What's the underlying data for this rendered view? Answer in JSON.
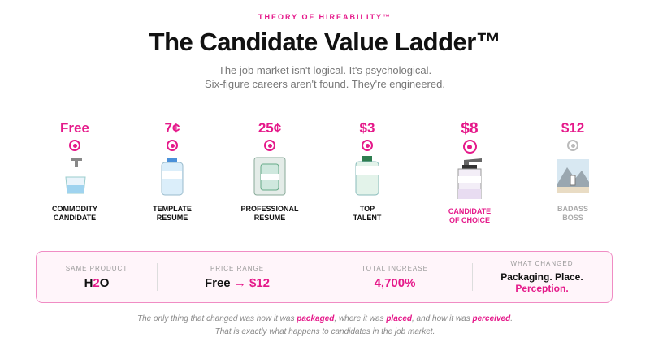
{
  "header": {
    "eyebrow": "THEORY OF HIREABILITY™",
    "title": "The Candidate Value Ladder™",
    "subtitle": [
      "The job market isn't logical. It's psychological.",
      "Six-figure careers aren't found. They're engineered."
    ]
  },
  "steps": [
    {
      "price": "Free",
      "label": [
        "COMMODITY",
        "CANDIDATE"
      ]
    },
    {
      "price": "7¢",
      "label": [
        "TEMPLATE",
        "RESUME"
      ]
    },
    {
      "price": "25¢",
      "label": [
        "PROFESSIONAL",
        "RESUME"
      ]
    },
    {
      "price": "$3",
      "label": [
        "TOP",
        "TALENT"
      ]
    },
    {
      "price": "$8",
      "label": [
        "CANDIDATE",
        "OF CHOICE"
      ]
    },
    {
      "price": "$12",
      "label": [
        "BADASS",
        "BOSS"
      ]
    }
  ],
  "summary": [
    {
      "label": "SAME PRODUCT",
      "value": [
        "H",
        "2",
        "O"
      ]
    },
    {
      "label": "PRICE RANGE",
      "value": [
        "Free",
        "→",
        "$12"
      ]
    },
    {
      "label": "TOTAL INCREASE",
      "value": [
        "4,700%"
      ]
    },
    {
      "label": "WHAT CHANGED",
      "value": [
        "Packaging. Place.",
        "Perception."
      ]
    }
  ],
  "footer": {
    "line1": [
      "The only thing that changed was how it was ",
      "packaged",
      ", where it was ",
      "placed",
      ", and how it was ",
      "perceived",
      "."
    ],
    "line2": "That is exactly what happens to candidates in the job market."
  }
}
